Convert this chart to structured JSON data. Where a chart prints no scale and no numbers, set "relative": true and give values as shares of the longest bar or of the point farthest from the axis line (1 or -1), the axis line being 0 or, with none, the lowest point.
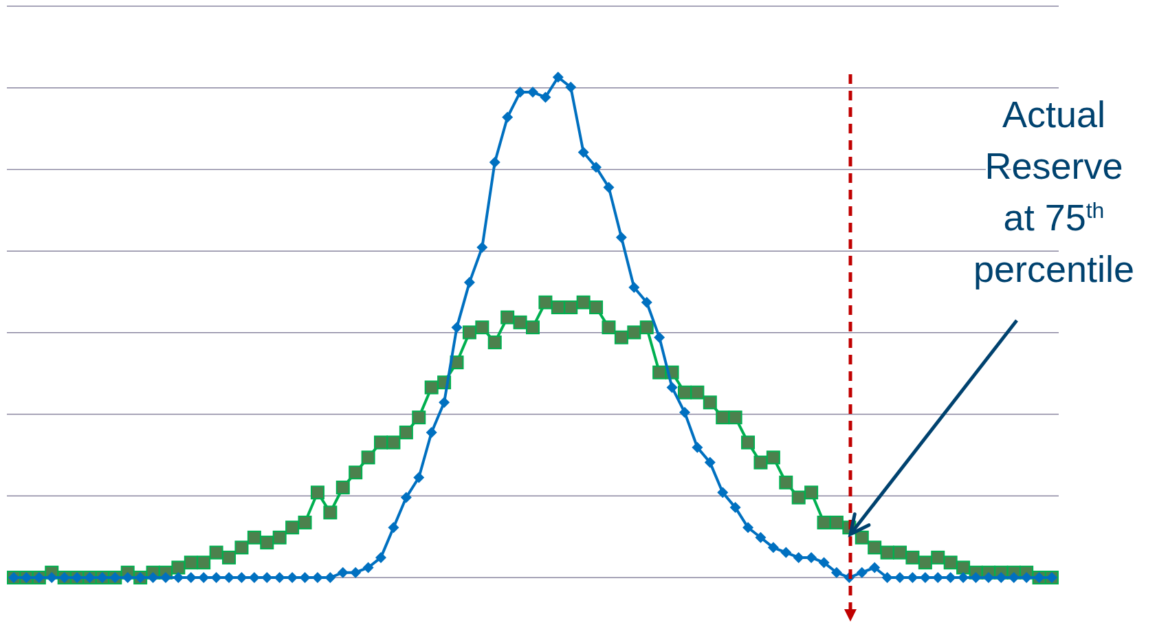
{
  "chart_data": {
    "type": "line",
    "relative": true,
    "grid": true,
    "categories": [
      null,
      null,
      null,
      null,
      null,
      null,
      null,
      null,
      null,
      null,
      null,
      null,
      null,
      null,
      null,
      null,
      null,
      null,
      null,
      null,
      null,
      null,
      null,
      null,
      null,
      null,
      null,
      null,
      null,
      null,
      null,
      null,
      null,
      null,
      null,
      null,
      null,
      null,
      null,
      null,
      null,
      null,
      null,
      null,
      null,
      null,
      null,
      null,
      null,
      null,
      null,
      null,
      null,
      null,
      null,
      null,
      null,
      null,
      null,
      null,
      null,
      null,
      null,
      null,
      null,
      null,
      null,
      null,
      null,
      null,
      null,
      null,
      null,
      null,
      null,
      null,
      null,
      null,
      null,
      null,
      null,
      null,
      null
    ],
    "series": [
      {
        "color": "#0070c0",
        "marker": "diamond",
        "values": [
          0,
          0,
          0,
          0,
          0,
          0,
          0,
          0,
          0,
          0,
          0,
          0,
          0,
          0,
          0,
          0,
          0,
          0,
          0,
          0,
          0,
          0,
          0,
          0,
          0,
          0,
          0.01,
          0.01,
          0.02,
          0.04,
          0.1,
          0.16,
          0.2,
          0.29,
          0.35,
          0.5,
          0.59,
          0.66,
          0.83,
          0.92,
          0.97,
          0.97,
          0.96,
          1,
          0.98,
          0.85,
          0.82,
          0.78,
          0.68,
          0.58,
          0.55,
          0.48,
          0.38,
          0.33,
          0.26,
          0.23,
          0.17,
          0.14,
          0.1,
          0.08,
          0.06,
          0.05,
          0.04,
          0.04,
          0.03,
          0.01,
          0,
          0.01,
          0.02,
          0,
          0,
          0,
          0,
          0,
          0,
          0,
          0,
          0,
          0,
          0,
          0,
          0,
          0
        ]
      },
      {
        "color": "#00b050",
        "marker": "square",
        "values": [
          0,
          0,
          0,
          0.01,
          0,
          0,
          0,
          0,
          0,
          0.01,
          0,
          0.01,
          0.01,
          0.02,
          0.03,
          0.03,
          0.05,
          0.04,
          0.06,
          0.08,
          0.07,
          0.08,
          0.1,
          0.11,
          0.17,
          0.13,
          0.18,
          0.21,
          0.24,
          0.27,
          0.27,
          0.29,
          0.32,
          0.38,
          0.39,
          0.43,
          0.49,
          0.5,
          0.47,
          0.52,
          0.51,
          0.5,
          0.55,
          0.54,
          0.54,
          0.55,
          0.54,
          0.5,
          0.48,
          0.49,
          0.5,
          0.41,
          0.41,
          0.37,
          0.37,
          0.35,
          0.32,
          0.32,
          0.27,
          0.23,
          0.24,
          0.19,
          0.16,
          0.17,
          0.11,
          0.11,
          0.1,
          0.08,
          0.06,
          0.05,
          0.05,
          0.04,
          0.03,
          0.04,
          0.03,
          0.02,
          0.01,
          0.01,
          0.01,
          0.01,
          0.01,
          0,
          0
        ]
      }
    ],
    "annotations": [
      "Actual Reserve at 75$^{th}$ percentile"
    ]
  }
}
